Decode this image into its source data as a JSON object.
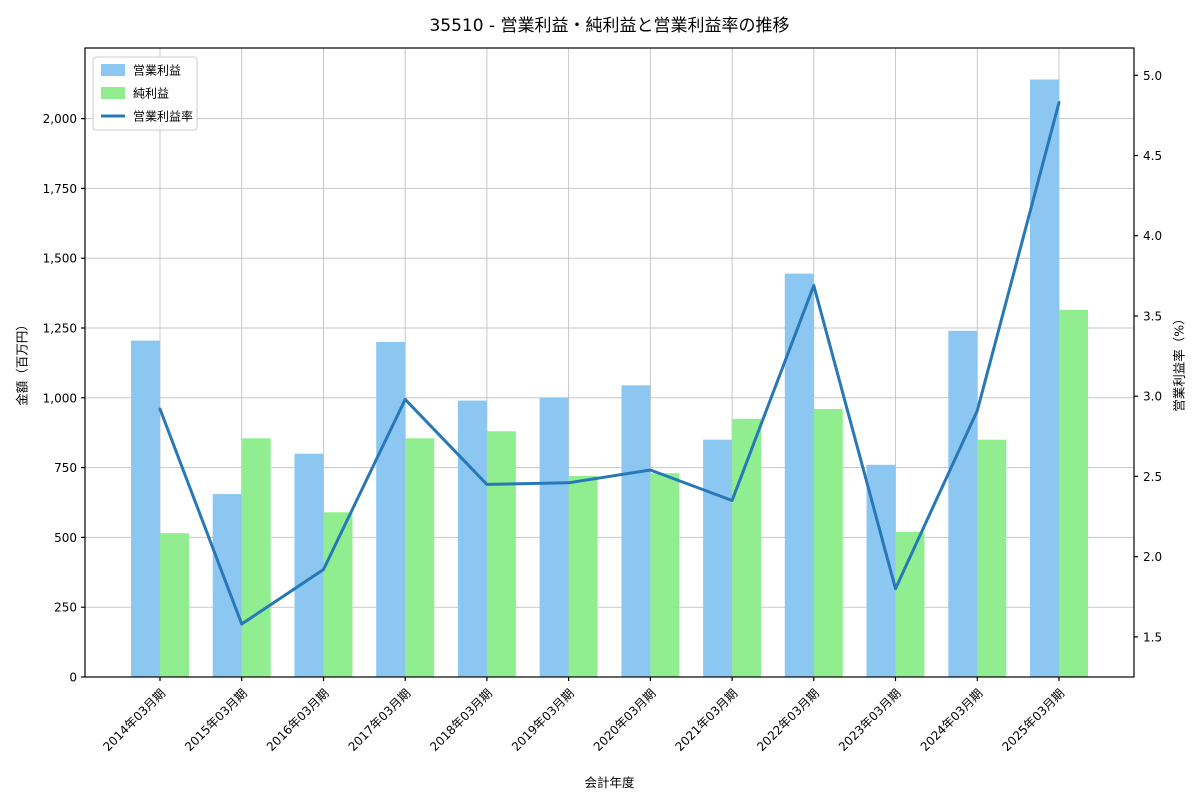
{
  "chart_data": {
    "type": "bar+line",
    "title": "35510 - 営業利益・純利益と営業利益率の推移",
    "xlabel": "会計年度",
    "ylabel_left": "金額（百万円）",
    "ylabel_right": "営業利益率（%）",
    "categories": [
      "2014年03月期",
      "2015年03月期",
      "2016年03月期",
      "2017年03月期",
      "2018年03月期",
      "2019年03月期",
      "2020年03月期",
      "2021年03月期",
      "2022年03月期",
      "2023年03月期",
      "2024年03月期",
      "2025年03月期"
    ],
    "series": [
      {
        "name": "営業利益",
        "type": "bar",
        "axis": "left",
        "color": "#8CC7F2",
        "values": [
          1205,
          655,
          800,
          1200,
          990,
          1000,
          1045,
          850,
          1445,
          760,
          1240,
          2140
        ]
      },
      {
        "name": "純利益",
        "type": "bar",
        "axis": "left",
        "color": "#90EE90",
        "values": [
          515,
          855,
          590,
          855,
          880,
          720,
          730,
          925,
          960,
          520,
          850,
          1315
        ]
      },
      {
        "name": "営業利益率",
        "type": "line",
        "axis": "right",
        "color": "#2878B8",
        "values": [
          2.92,
          1.58,
          1.92,
          2.98,
          2.45,
          2.46,
          2.54,
          2.35,
          3.69,
          1.8,
          2.91,
          4.83
        ]
      }
    ],
    "left_axis": {
      "min": 0,
      "max": 2253,
      "tick_values": [
        0,
        250,
        500,
        750,
        1000,
        1250,
        1500,
        1750,
        2000
      ],
      "tick_labels": [
        "0",
        "250",
        "500",
        "750",
        "1,000",
        "1,250",
        "1,500",
        "1,750",
        "2,000"
      ]
    },
    "right_axis": {
      "min": 1.25,
      "max": 5.17,
      "tick_values": [
        1.5,
        2.0,
        2.5,
        3.0,
        3.5,
        4.0,
        4.5,
        5.0
      ],
      "tick_labels": [
        "1.5",
        "2.0",
        "2.5",
        "3.0",
        "3.5",
        "4.0",
        "4.5",
        "5.0"
      ]
    },
    "grid": true,
    "legend_position": "upper-left",
    "colors": {
      "grid": "#C8C8C8",
      "spine": "#000000",
      "background": "#ffffff"
    }
  }
}
